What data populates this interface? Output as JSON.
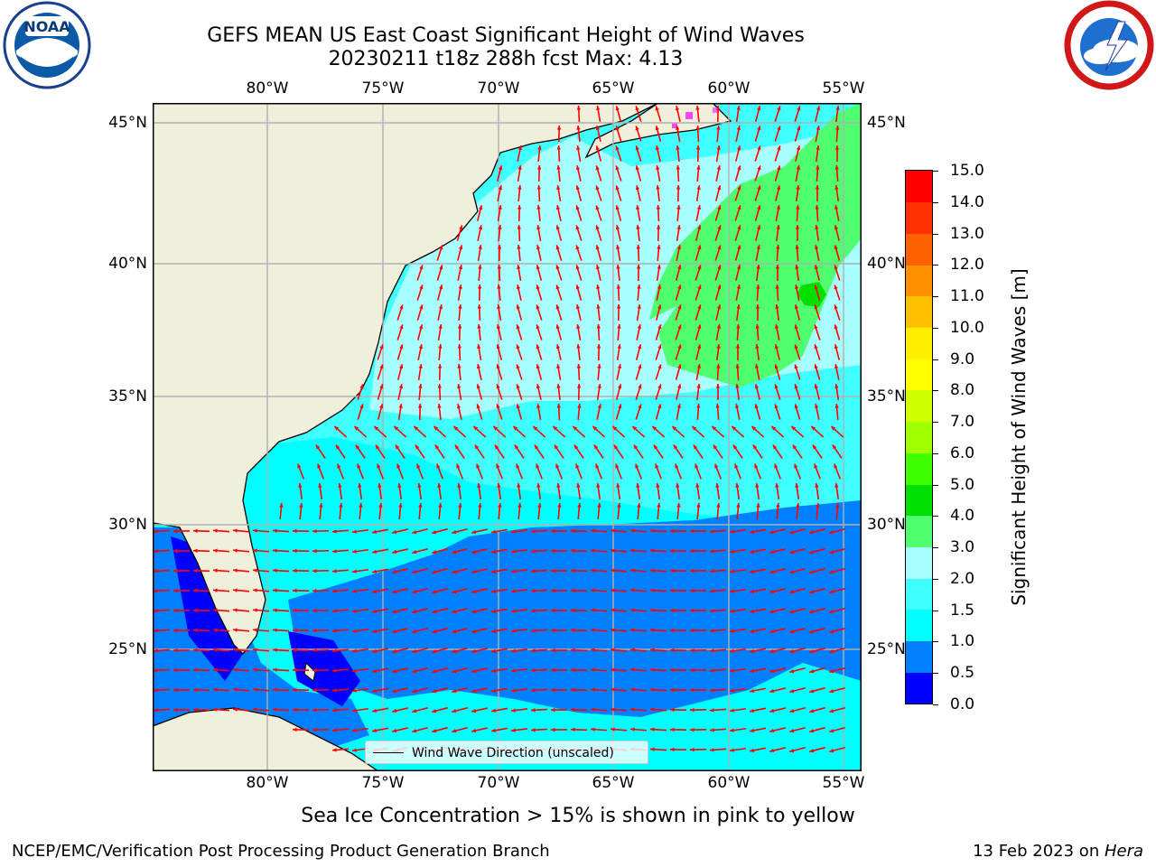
{
  "title": {
    "line1": "GEFS MEAN US East Coast Significant Height of Wind Waves",
    "line2": "20230211 t18z 288h fcst   Max: 4.13"
  },
  "logos": {
    "left": "noaa-logo-icon",
    "right": "nws-logo-icon"
  },
  "map": {
    "lon_labels": [
      "80°W",
      "75°W",
      "70°W",
      "65°W",
      "60°W",
      "55°W"
    ],
    "lat_labels": [
      "45°N",
      "40°N",
      "35°N",
      "30°N",
      "25°N"
    ],
    "legend_label": "Wind Wave Direction (unscaled)",
    "vector_color": "#ff0000",
    "land_color": "#efefdc",
    "grid": true
  },
  "colorbar": {
    "title": "Significant Height of Wind Waves [m]",
    "levels": [
      "0.0",
      "0.5",
      "1.0",
      "1.5",
      "2.0",
      "3.0",
      "4.0",
      "5.0",
      "6.0",
      "7.0",
      "8.0",
      "9.0",
      "10.0",
      "11.0",
      "12.0",
      "13.0",
      "14.0",
      "15.0"
    ],
    "colors": [
      "#0000ff",
      "#0080ff",
      "#00ffff",
      "#40ffff",
      "#a8ffff",
      "#50ff70",
      "#00e000",
      "#40ff00",
      "#a0ff00",
      "#d0ff00",
      "#ffff00",
      "#ffee00",
      "#ffc000",
      "#ff9000",
      "#ff6000",
      "#ff3000",
      "#ff0000"
    ]
  },
  "footer": {
    "note": "Sea Ice Concentration > 15% is shown in pink to yellow",
    "left": "NCEP/EMC/Verification Post Processing Product Generation Branch",
    "date": "13 Feb 2023 on ",
    "machine": "Hera"
  }
}
